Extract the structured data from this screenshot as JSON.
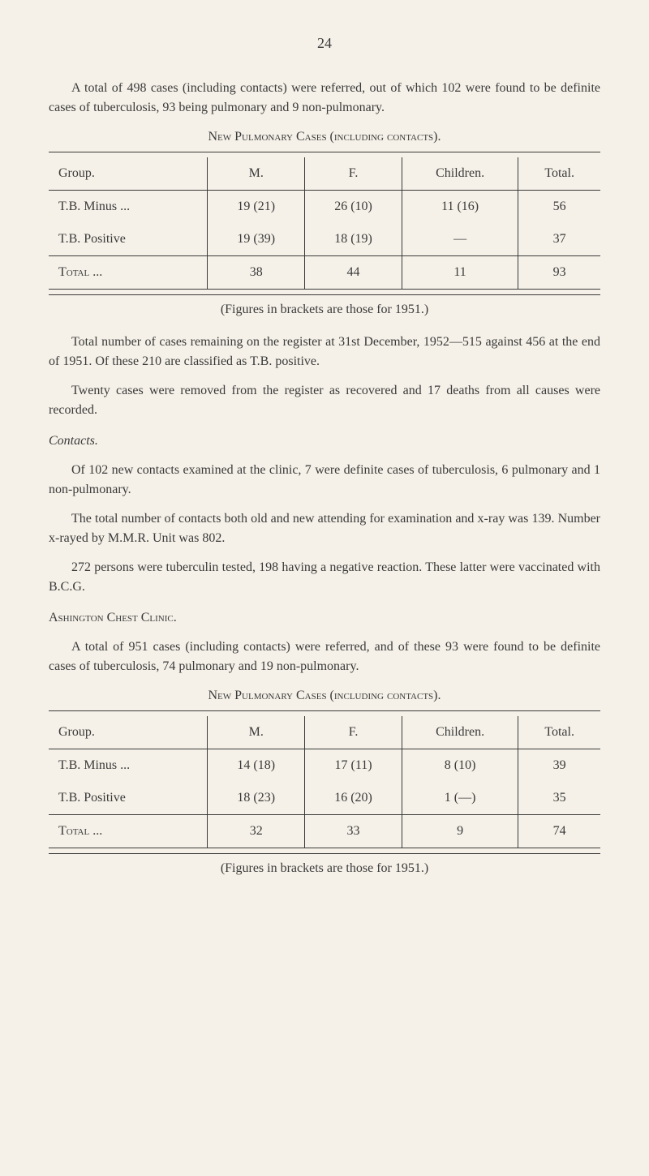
{
  "page_number": "24",
  "intro_p1": "A total of 498 cases (including contacts) were referred, out of which 102 were found to be definite cases of tuberculosis, 93 being pulmonary and 9 non-pulmonary.",
  "table1": {
    "caption": "New Pulmonary Cases (including contacts).",
    "columns": {
      "group": "Group.",
      "m": "M.",
      "f": "F.",
      "children": "Children.",
      "total": "Total."
    },
    "rows": [
      {
        "group": "T.B. Minus ...",
        "m": "19 (21)",
        "f": "26 (10)",
        "children": "11 (16)",
        "total": "56"
      },
      {
        "group": "T.B. Positive",
        "m": "19 (39)",
        "f": "18 (19)",
        "children": "—",
        "total": "37"
      }
    ],
    "total_row": {
      "label": "Total ...",
      "m": "38",
      "f": "44",
      "children": "11",
      "total": "93"
    },
    "figures_note": "(Figures in brackets are those for 1951.)"
  },
  "para_register": "Total number of cases remaining on the register at 31st December, 1952—515 against 456 at the end of 1951. Of these 210 are classified as T.B. positive.",
  "para_removed": "Twenty cases were removed from the register as recovered and 17 deaths from all causes were recorded.",
  "contacts_heading": "Contacts.",
  "contacts_p1": "Of 102 new contacts examined at the clinic, 7 were definite cases of tuberculosis, 6 pulmonary and 1 non-pulmonary.",
  "contacts_p2": "The total number of contacts both old and new attending for examination and x-ray was 139. Number x-rayed by M.M.R. Unit was 802.",
  "contacts_p3": "272 persons were tuberculin tested, 198 having a negative reaction. These latter were vaccinated with B.C.G.",
  "ashington_heading": "Ashington Chest Clinic.",
  "ashington_p1": "A total of 951 cases (including contacts) were referred, and of these 93 were found to be definite cases of tuberculosis, 74 pulmonary and 19 non-pulmonary.",
  "table2": {
    "caption": "New Pulmonary Cases (including contacts).",
    "columns": {
      "group": "Group.",
      "m": "M.",
      "f": "F.",
      "children": "Children.",
      "total": "Total."
    },
    "rows": [
      {
        "group": "T.B. Minus ...",
        "m": "14 (18)",
        "f": "17 (11)",
        "children": "8 (10)",
        "total": "39"
      },
      {
        "group": "T.B. Positive",
        "m": "18 (23)",
        "f": "16 (20)",
        "children": "1 (—)",
        "total": "35"
      }
    ],
    "total_row": {
      "label": "Total ...",
      "m": "32",
      "f": "33",
      "children": "9",
      "total": "74"
    },
    "figures_note": "(Figures in brackets are those for 1951.)"
  }
}
